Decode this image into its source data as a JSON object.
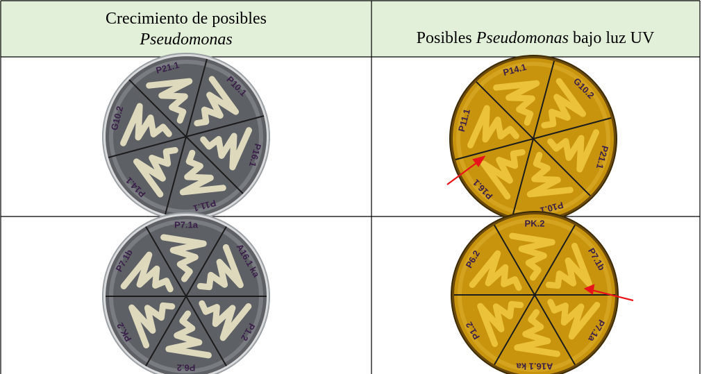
{
  "table": {
    "header": [
      {
        "lines": [
          "Crecimiento de posibles"
        ],
        "italic": "Pseudomonas"
      },
      {
        "before": "Posibles",
        "italic": "Pseudomonas",
        "after": "bajo luz UV"
      }
    ],
    "rows": [
      [
        {
          "labels": [
            "P10.1",
            "P16.1",
            "P11.1",
            "P14.1",
            "G10.2",
            "P21.1"
          ]
        },
        {
          "labels": [
            "G10.2",
            "P21.1",
            "P10.1",
            "P16.1",
            "P11.1",
            "P14.1"
          ]
        }
      ],
      [
        {
          "labels": [
            "A16.1 ka",
            "P1.2",
            "P6.2",
            "PK.2",
            "P7.1b",
            "P7.1a"
          ]
        },
        {
          "labels": [
            "P7.1b",
            "P7.1a",
            "A16.1 ka",
            "P1.2",
            "P6.2",
            "PK.2"
          ]
        }
      ]
    ]
  }
}
